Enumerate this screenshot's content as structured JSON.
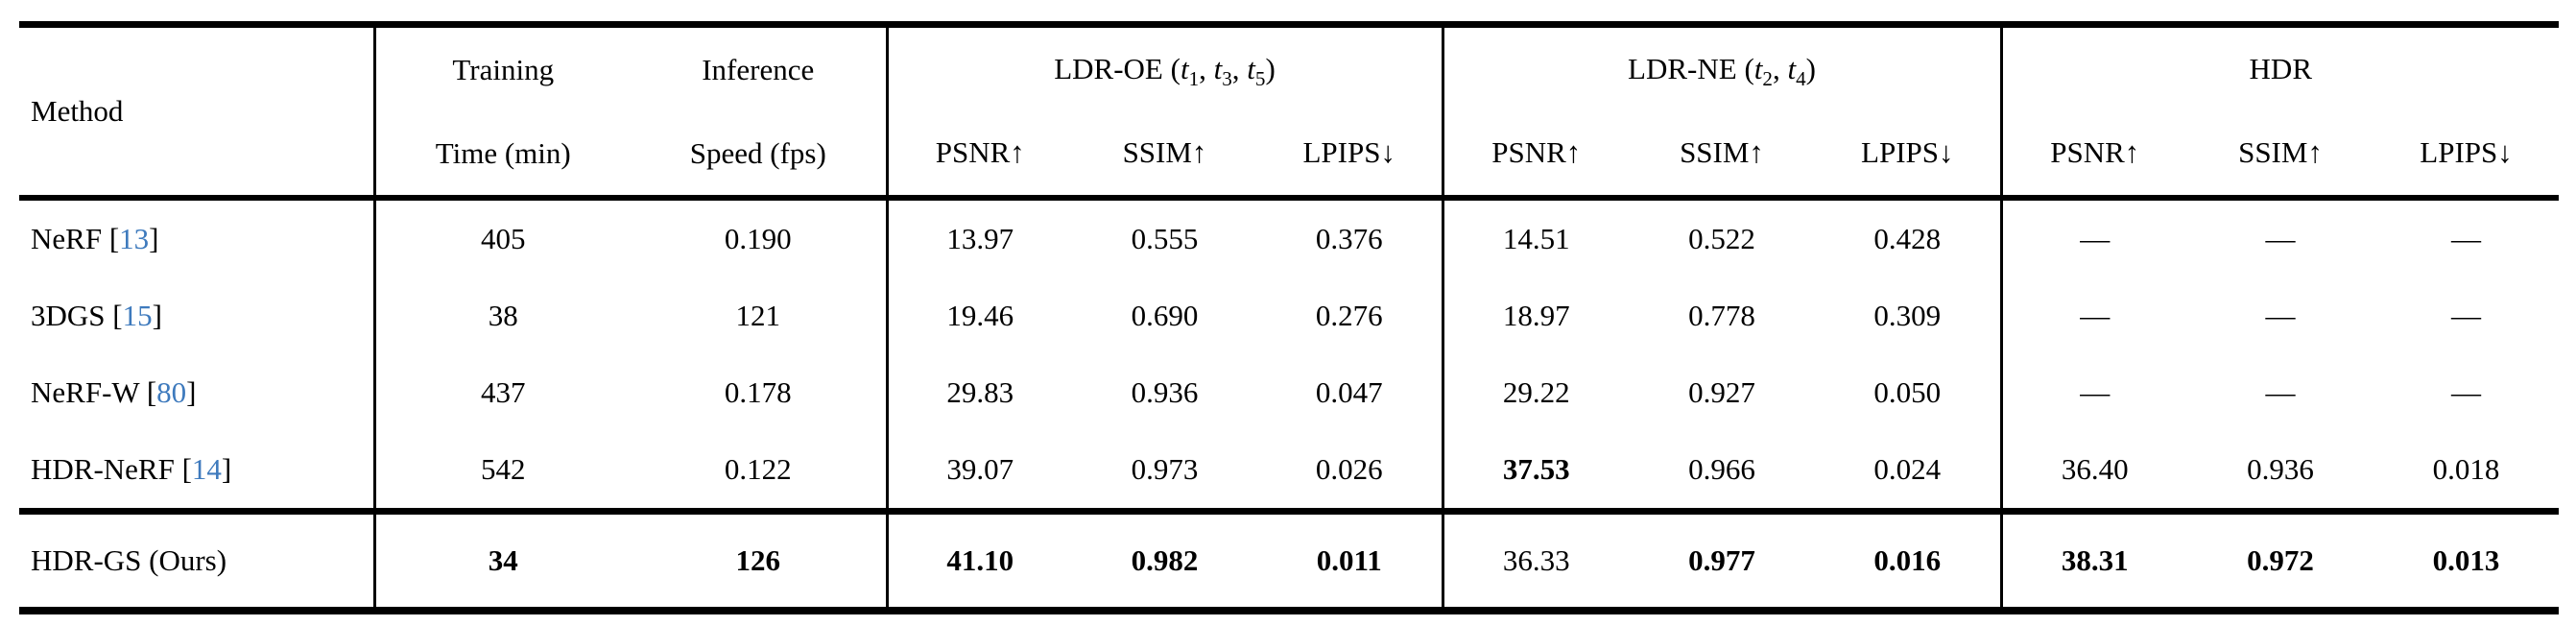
{
  "colors": {
    "text": "#000000",
    "rule": "#000000",
    "cite_link_blue": "#3e7abd"
  },
  "table": {
    "header": {
      "method_label": "Method",
      "training_line1": "Training",
      "training_line2": "Time (min)",
      "inference_line1": "Inference",
      "inference_line2": "Speed (fps)",
      "groups": [
        {
          "label_html": "LDR-OE (<i>t</i><sub>1</sub>, <i>t</i><sub>3</sub>, <i>t</i><sub>5</sub>)"
        },
        {
          "label_html": "LDR-NE (<i>t</i><sub>2</sub>, <i>t</i><sub>4</sub>)"
        },
        {
          "label_html": "HDR"
        }
      ],
      "metrics": [
        "PSNR↑",
        "SSIM↑",
        "LPIPS↓"
      ]
    },
    "rows": [
      {
        "method_prefix": "NeRF [",
        "method_cite": "13",
        "method_suffix": "]",
        "training_time": "405",
        "inference_speed": "0.190",
        "ldr_oe_psnr": "13.97",
        "ldr_oe_ssim": "0.555",
        "ldr_oe_lpips": "0.376",
        "ldr_ne_psnr": "14.51",
        "ldr_ne_ssim": "0.522",
        "ldr_ne_lpips": "0.428",
        "hdr_psnr": "—",
        "hdr_ssim": "—",
        "hdr_lpips": "—"
      },
      {
        "method_prefix": "3DGS [",
        "method_cite": "15",
        "method_suffix": "]",
        "training_time": "38",
        "inference_speed": "121",
        "ldr_oe_psnr": "19.46",
        "ldr_oe_ssim": "0.690",
        "ldr_oe_lpips": "0.276",
        "ldr_ne_psnr": "18.97",
        "ldr_ne_ssim": "0.778",
        "ldr_ne_lpips": "0.309",
        "hdr_psnr": "—",
        "hdr_ssim": "—",
        "hdr_lpips": "—"
      },
      {
        "method_prefix": "NeRF-W [",
        "method_cite": "80",
        "method_suffix": "]",
        "training_time": "437",
        "inference_speed": "0.178",
        "ldr_oe_psnr": "29.83",
        "ldr_oe_ssim": "0.936",
        "ldr_oe_lpips": "0.047",
        "ldr_ne_psnr": "29.22",
        "ldr_ne_ssim": "0.927",
        "ldr_ne_lpips": "0.050",
        "hdr_psnr": "—",
        "hdr_ssim": "—",
        "hdr_lpips": "—"
      },
      {
        "method_prefix": "HDR-NeRF [",
        "method_cite": "14",
        "method_suffix": "]",
        "training_time": "542",
        "inference_speed": "0.122",
        "ldr_oe_psnr": "39.07",
        "ldr_oe_ssim": "0.973",
        "ldr_oe_lpips": "0.026",
        "ldr_ne_psnr": "37.53",
        "ldr_ne_ssim": "0.966",
        "ldr_ne_lpips": "0.024",
        "hdr_psnr": "36.40",
        "hdr_ssim": "0.936",
        "hdr_lpips": "0.018"
      }
    ],
    "ours_row": {
      "method_prefix": "HDR-GS (Ours)",
      "method_cite": "",
      "method_suffix": "",
      "training_time": "34",
      "inference_speed": "126",
      "ldr_oe_psnr": "41.10",
      "ldr_oe_ssim": "0.982",
      "ldr_oe_lpips": "0.011",
      "ldr_ne_psnr": "36.33",
      "ldr_ne_ssim": "0.977",
      "ldr_ne_lpips": "0.016",
      "hdr_psnr": "38.31",
      "hdr_ssim": "0.972",
      "hdr_lpips": "0.013"
    }
  }
}
